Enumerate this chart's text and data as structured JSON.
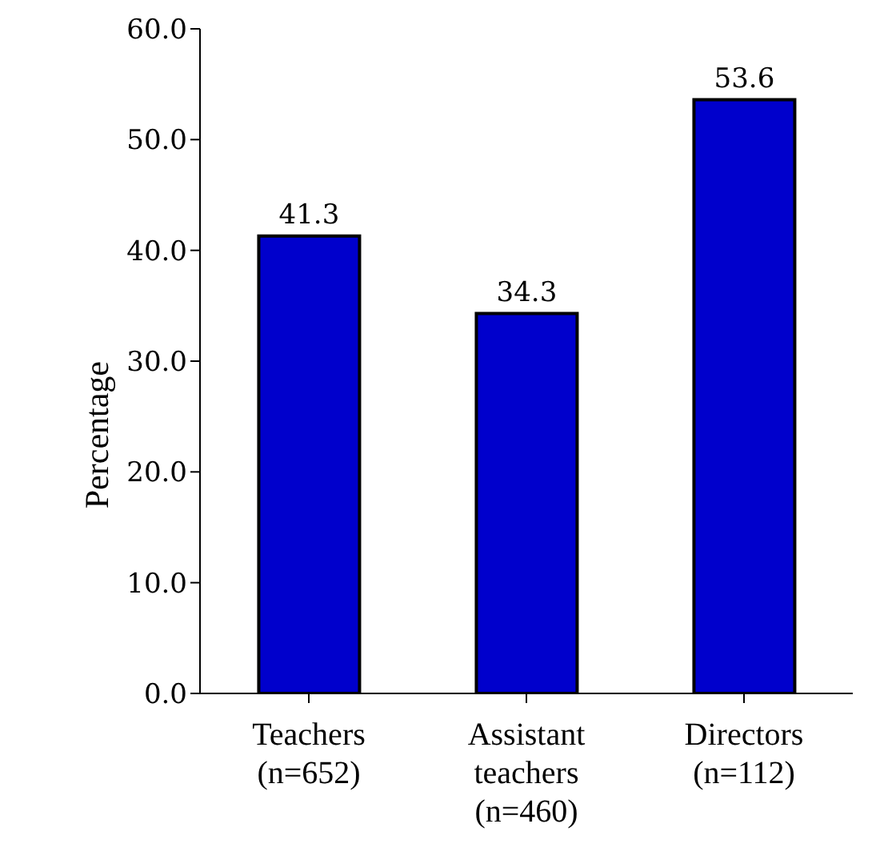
{
  "chart_data": {
    "type": "bar",
    "ylabel": "Percentage",
    "categories": [
      "Teachers\n(n=652)",
      "Assistant\nteachers\n(n=460)",
      "Directors\n(n=112)"
    ],
    "values": [
      41.3,
      34.3,
      53.6
    ],
    "color": "#0000cc",
    "ylim": [
      0,
      60
    ],
    "yticks": [
      {
        "value": 0,
        "label": "0.0"
      },
      {
        "value": 10,
        "label": "10.0"
      },
      {
        "value": 20,
        "label": "20.0"
      },
      {
        "value": 30,
        "label": "30.0"
      },
      {
        "value": 40,
        "label": "40.0"
      },
      {
        "value": 50,
        "label": "50.0"
      },
      {
        "value": 60,
        "label": "60.0"
      }
    ],
    "data_labels": true,
    "grid": false,
    "legend": false
  }
}
